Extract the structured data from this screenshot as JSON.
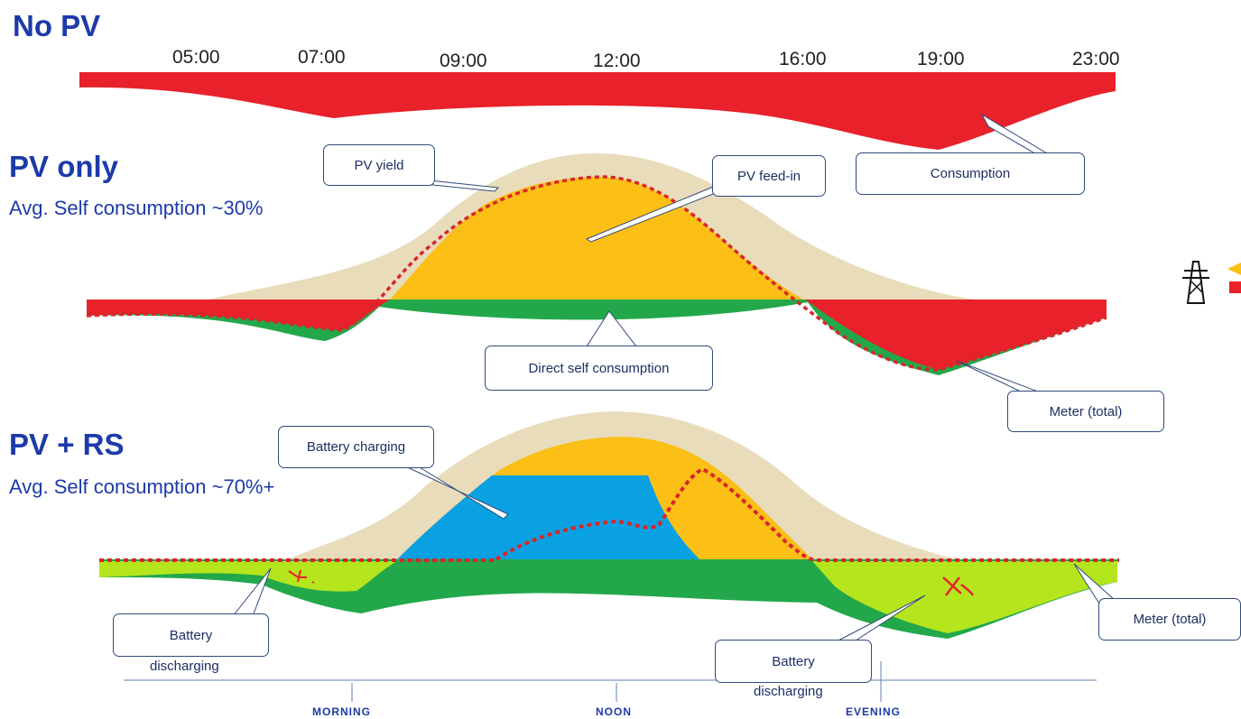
{
  "sections": {
    "no_pv": {
      "title": "No PV"
    },
    "pv_only": {
      "title": "PV only",
      "subtitle": "Avg. Self consumption ~30%"
    },
    "pv_rs": {
      "title": "PV + RS",
      "subtitle": "Avg. Self consumption ~70%+"
    }
  },
  "time_labels": [
    "05:00",
    "07:00",
    "09:00",
    "12:00",
    "16:00",
    "19:00",
    "23:00"
  ],
  "callouts": {
    "pv_yield": "PV yield",
    "pv_feed_in": "PV feed-in",
    "consumption": "Consumption",
    "direct_self_consumption": "Direct self consumption",
    "meter_total_1": "Meter (total)",
    "battery_charging": "Battery charging",
    "battery_discharging_left_1": "Battery",
    "battery_discharging_left_2": "discharging",
    "battery_discharging_right_1": "Battery",
    "battery_discharging_right_2": "discharging",
    "meter_total_2": "Meter (total)"
  },
  "periods": {
    "morning": "MORNING",
    "noon": "NOON",
    "evening": "EVENING"
  },
  "colors": {
    "heading": "#1c3aa9",
    "grid_draw": "#e8212b",
    "pv_feed_in": "#fbbf16",
    "pv_yield": "#e9dcbb",
    "direct_self_consumption": "#22a84a",
    "battery_charging": "#0aa1e3",
    "battery_discharging": "#b5e51d",
    "meter_line": "#d9262b"
  },
  "icons": {
    "grid": "power-pylon-icon"
  }
}
